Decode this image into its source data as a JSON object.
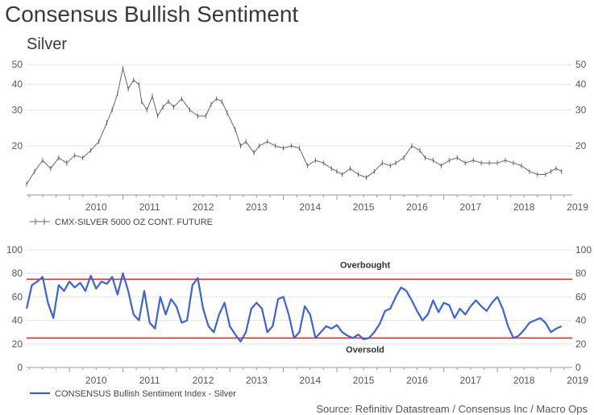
{
  "header": {
    "title": "Consensus Bullish Sentiment",
    "subtitle": "Silver"
  },
  "source": "Source: Refinitiv Datastream / Consensus Inc / Macro Ops",
  "colors": {
    "price": "#666666",
    "sentiment": "#3b63d6",
    "threshold": "#d62020",
    "grid": "#e4e4e4"
  },
  "chart_data": [
    {
      "type": "line",
      "xlabel": "",
      "ylabel": "",
      "scale": "log",
      "ylim": [
        11.5,
        51
      ],
      "xlim": [
        2009.2,
        2019.4
      ],
      "yticks": [
        20,
        30,
        40,
        50
      ],
      "x_tick_labels": [
        "2010",
        "2011",
        "2012",
        "2013",
        "2014",
        "2015",
        "2016",
        "2017",
        "2018",
        "2019"
      ],
      "legend_position": "bottom-left",
      "series": [
        {
          "name": "CMX-SILVER 5000 OZ CONT. FUTURE",
          "x": [
            2009.2,
            2009.35,
            2009.5,
            2009.65,
            2009.8,
            2009.95,
            2010.1,
            2010.25,
            2010.4,
            2010.55,
            2010.7,
            2010.8,
            2010.9,
            2011.0,
            2011.1,
            2011.2,
            2011.3,
            2011.35,
            2011.45,
            2011.55,
            2011.65,
            2011.75,
            2011.85,
            2011.95,
            2012.1,
            2012.25,
            2012.4,
            2012.55,
            2012.65,
            2012.75,
            2012.85,
            2012.95,
            2013.1,
            2013.2,
            2013.3,
            2013.45,
            2013.55,
            2013.7,
            2013.85,
            2014.0,
            2014.15,
            2014.3,
            2014.45,
            2014.6,
            2014.75,
            2014.9,
            2015.0,
            2015.1,
            2015.25,
            2015.4,
            2015.55,
            2015.7,
            2015.85,
            2016.0,
            2016.1,
            2016.25,
            2016.4,
            2016.55,
            2016.65,
            2016.8,
            2016.95,
            2017.1,
            2017.25,
            2017.4,
            2017.55,
            2017.7,
            2017.85,
            2018.0,
            2018.15,
            2018.3,
            2018.45,
            2018.6,
            2018.75,
            2018.9,
            2019.0,
            2019.1,
            2019.2
          ],
          "values": [
            13,
            15,
            17,
            15.5,
            17.5,
            16.5,
            18,
            17.5,
            19,
            21,
            26,
            30,
            36,
            48,
            38,
            42,
            40,
            33,
            30,
            35,
            28,
            31,
            33,
            31,
            34,
            30,
            28,
            28,
            32,
            34,
            33,
            29,
            24,
            20,
            21,
            18.5,
            20,
            21,
            20,
            19.5,
            20,
            19.5,
            16,
            17,
            16.5,
            15.5,
            15,
            14.5,
            15.5,
            14.5,
            14,
            15,
            16.5,
            16,
            16.5,
            17.5,
            20,
            19,
            17.5,
            17,
            16,
            17,
            17.5,
            16.5,
            17,
            16.5,
            16.5,
            16.5,
            17,
            16.5,
            16,
            15,
            14.5,
            14.5,
            15,
            15.5,
            15
          ]
        }
      ]
    },
    {
      "type": "line",
      "xlabel": "",
      "ylabel": "",
      "ylim": [
        0,
        100
      ],
      "xlim": [
        2009.2,
        2019.4
      ],
      "yticks": [
        0,
        20,
        40,
        60,
        80,
        100
      ],
      "x_tick_labels": [
        "2010",
        "2011",
        "2012",
        "2013",
        "2014",
        "2015",
        "2016",
        "2017",
        "2018",
        "2019"
      ],
      "legend_position": "bottom-left",
      "thresholds": [
        {
          "label": "Overbought",
          "value": 75
        },
        {
          "label": "Oversold",
          "value": 25
        }
      ],
      "series": [
        {
          "name": "CONSENSUS Bullish Sentiment Index - Silver",
          "x": [
            2009.2,
            2009.3,
            2009.4,
            2009.5,
            2009.6,
            2009.7,
            2009.8,
            2009.9,
            2010.0,
            2010.1,
            2010.2,
            2010.3,
            2010.4,
            2010.5,
            2010.6,
            2010.7,
            2010.8,
            2010.9,
            2011.0,
            2011.1,
            2011.2,
            2011.3,
            2011.4,
            2011.5,
            2011.6,
            2011.7,
            2011.8,
            2011.9,
            2012.0,
            2012.1,
            2012.2,
            2012.3,
            2012.4,
            2012.5,
            2012.6,
            2012.7,
            2012.8,
            2012.9,
            2013.0,
            2013.1,
            2013.2,
            2013.3,
            2013.4,
            2013.5,
            2013.6,
            2013.7,
            2013.8,
            2013.9,
            2014.0,
            2014.1,
            2014.2,
            2014.3,
            2014.4,
            2014.5,
            2014.6,
            2014.7,
            2014.8,
            2014.9,
            2015.0,
            2015.1,
            2015.2,
            2015.3,
            2015.4,
            2015.5,
            2015.6,
            2015.7,
            2015.8,
            2015.9,
            2016.0,
            2016.1,
            2016.2,
            2016.3,
            2016.4,
            2016.5,
            2016.6,
            2016.7,
            2016.8,
            2016.9,
            2017.0,
            2017.1,
            2017.2,
            2017.3,
            2017.4,
            2017.5,
            2017.6,
            2017.7,
            2017.8,
            2017.9,
            2018.0,
            2018.1,
            2018.2,
            2018.3,
            2018.4,
            2018.5,
            2018.6,
            2018.7,
            2018.8,
            2018.9,
            2019.0,
            2019.1,
            2019.2
          ],
          "values": [
            50,
            70,
            73,
            77,
            55,
            42,
            70,
            65,
            73,
            68,
            72,
            65,
            78,
            67,
            73,
            71,
            77,
            62,
            80,
            65,
            45,
            40,
            65,
            38,
            33,
            60,
            45,
            58,
            52,
            38,
            40,
            70,
            76,
            50,
            35,
            30,
            45,
            55,
            35,
            28,
            22,
            30,
            50,
            55,
            50,
            30,
            35,
            58,
            60,
            45,
            25,
            30,
            52,
            45,
            25,
            30,
            35,
            33,
            36,
            30,
            27,
            25,
            28,
            24,
            25,
            30,
            37,
            48,
            50,
            60,
            68,
            65,
            57,
            48,
            40,
            45,
            57,
            47,
            55,
            53,
            42,
            50,
            45,
            52,
            57,
            52,
            48,
            55,
            60,
            50,
            35,
            25,
            27,
            32,
            38,
            40,
            42,
            38,
            30,
            33,
            35
          ]
        }
      ]
    }
  ]
}
